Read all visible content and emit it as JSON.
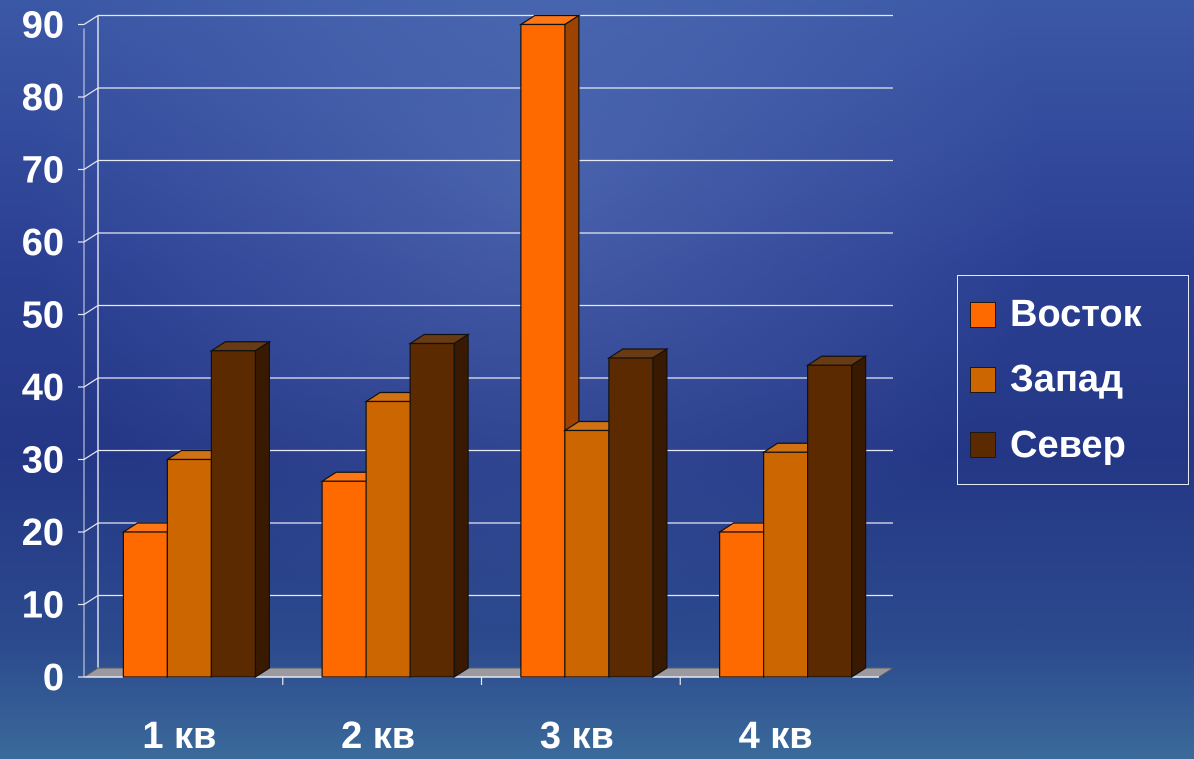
{
  "chart_data": {
    "type": "bar",
    "categories": [
      "1 кв",
      "2 кв",
      "3 кв",
      "4 кв"
    ],
    "series": [
      {
        "name": "Восток",
        "values": [
          20,
          27,
          90,
          20
        ],
        "color": "#ff6a00"
      },
      {
        "name": "Запад",
        "values": [
          30,
          38,
          34,
          31
        ],
        "color": "#cc6600"
      },
      {
        "name": "Север",
        "values": [
          45,
          46,
          44,
          43
        ],
        "color": "#5c2a00"
      }
    ],
    "ylim": [
      0,
      90
    ],
    "yticks": [
      "0",
      "10",
      "20",
      "30",
      "40",
      "50",
      "60",
      "70",
      "80",
      "90"
    ],
    "grid": true,
    "legend_position": "right",
    "style": "3d-clustered-column"
  }
}
